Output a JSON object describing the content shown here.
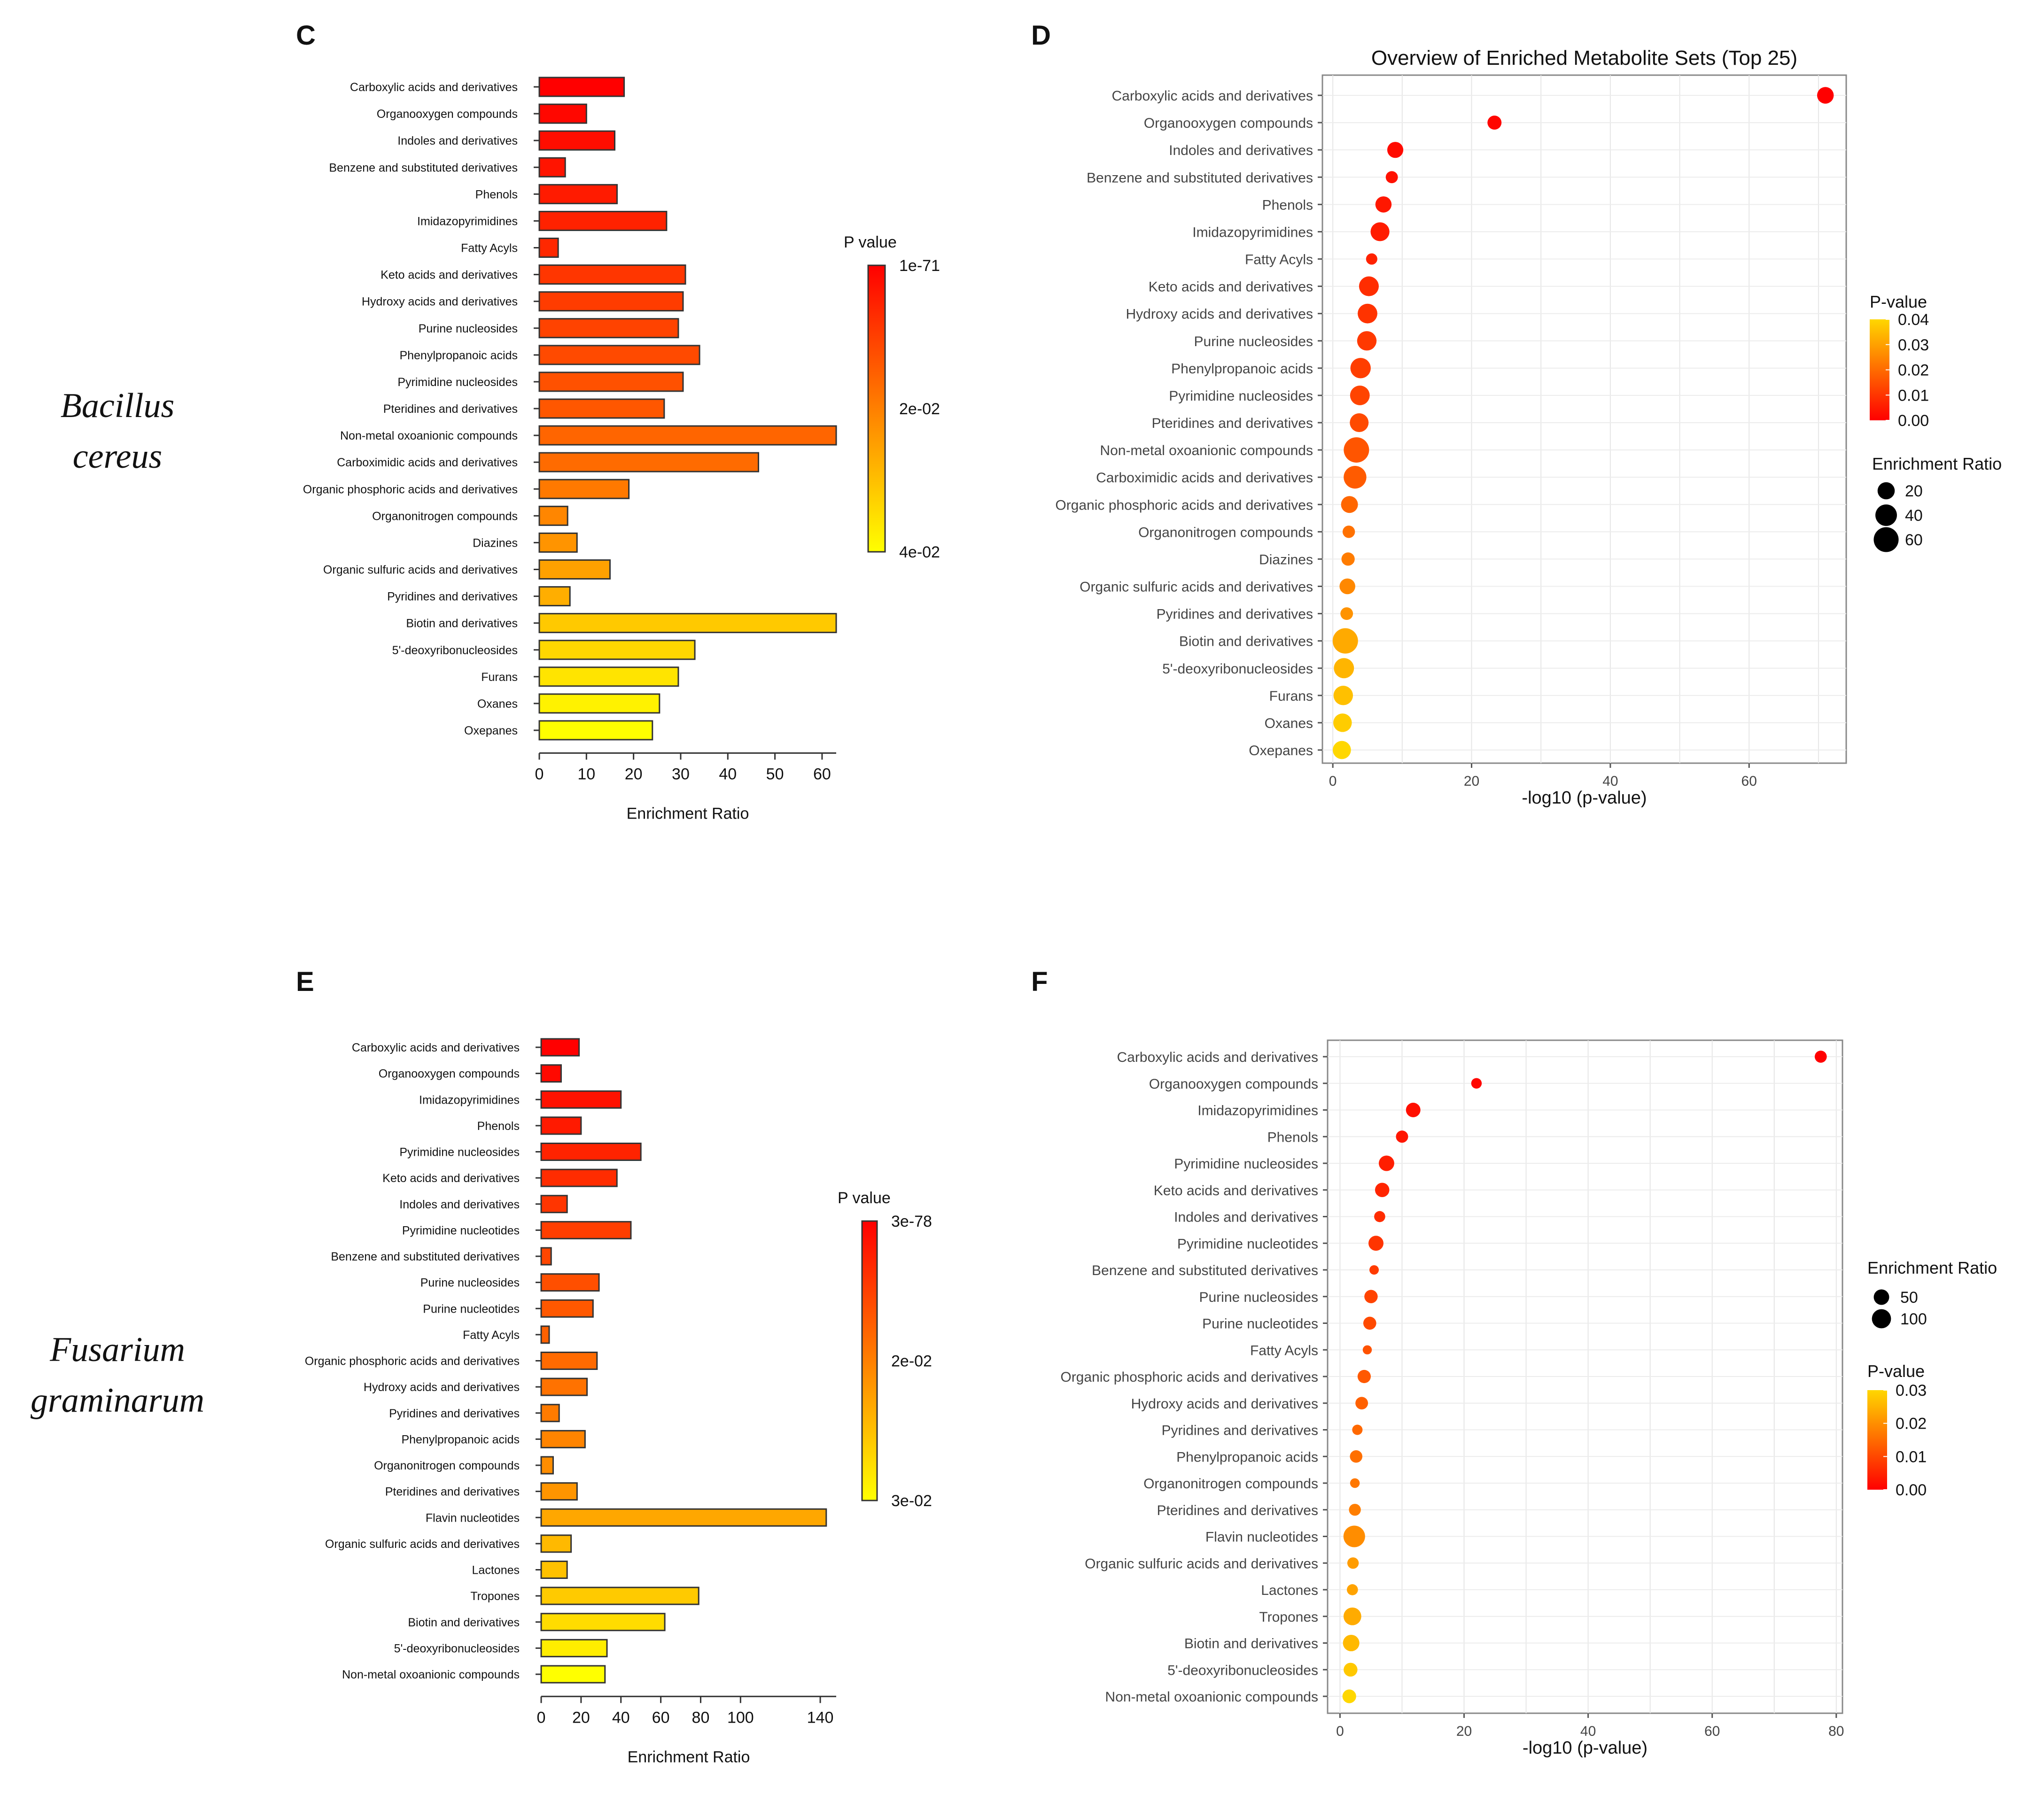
{
  "organisms": {
    "top": [
      "Bacillus",
      "cereus"
    ],
    "bottom": [
      "Fusarium",
      "graminarum"
    ]
  },
  "chart_data": [
    {
      "panel": "C",
      "type": "bar",
      "orientation": "horizontal",
      "title": "",
      "xlabel": "Enrichment Ratio",
      "ylabel": "",
      "xlim": [
        0,
        63
      ],
      "xticks": [
        0,
        10,
        20,
        30,
        40,
        50,
        60
      ],
      "categories": [
        "Carboxylic acids and derivatives",
        "Organooxygen compounds",
        "Indoles and derivatives",
        "Benzene and substituted derivatives",
        "Phenols",
        "Imidazopyrimidines",
        "Fatty Acyls",
        "Keto acids and derivatives",
        "Hydroxy acids and derivatives",
        "Purine nucleosides",
        "Phenylpropanoic acids",
        "Pyrimidine nucleosides",
        "Pteridines and derivatives",
        "Non-metal oxoanionic compounds",
        "Carboximidic acids and derivatives",
        "Organic phosphoric acids and derivatives",
        "Organonitrogen compounds",
        "Diazines",
        "Organic sulfuric acids and derivatives",
        "Pyridines and derivatives",
        "Biotin and derivatives",
        "5'-deoxyribonucleosides",
        "Furans",
        "Oxanes",
        "Oxepanes"
      ],
      "values": [
        18,
        10,
        16,
        5.5,
        16.5,
        27,
        4,
        31,
        30.5,
        29.5,
        34,
        30.5,
        26.5,
        63,
        46.5,
        19,
        6,
        8,
        15,
        6.5,
        63,
        33,
        29.5,
        25.5,
        24
      ],
      "color_by": "P value",
      "color_values": [
        0.0,
        0.001,
        0.002,
        0.003,
        0.004,
        0.005,
        0.006,
        0.008,
        0.009,
        0.01,
        0.011,
        0.012,
        0.013,
        0.015,
        0.016,
        0.018,
        0.02,
        0.022,
        0.024,
        0.026,
        0.03,
        0.032,
        0.034,
        0.036,
        0.038
      ],
      "colorbar": {
        "title": "P value",
        "labels": [
          "1e-71",
          "2e-02",
          "4e-02"
        ],
        "colors": [
          "#ff0000",
          "#ffff00"
        ]
      }
    },
    {
      "panel": "D",
      "type": "scatter",
      "title": "Overview of Enriched Metabolite Sets (Top 25)",
      "xlabel": "-log10 (p-value)",
      "ylabel": "",
      "xlim": [
        -1.5,
        74
      ],
      "xticks": [
        0,
        20,
        40,
        60
      ],
      "categories": [
        "Carboxylic acids and derivatives",
        "Organooxygen compounds",
        "Indoles and derivatives",
        "Benzene and substituted derivatives",
        "Phenols",
        "Imidazopyrimidines",
        "Fatty Acyls",
        "Keto acids and derivatives",
        "Hydroxy acids and derivatives",
        "Purine nucleosides",
        "Phenylpropanoic acids",
        "Pyrimidine nucleosides",
        "Pteridines and derivatives",
        "Non-metal oxoanionic compounds",
        "Carboximidic acids and derivatives",
        "Organic phosphoric acids and derivatives",
        "Organonitrogen compounds",
        "Diazines",
        "Organic sulfuric acids and derivatives",
        "Pyridines and derivatives",
        "Biotin and derivatives",
        "5'-deoxyribonucleosides",
        "Furans",
        "Oxanes",
        "Oxepanes"
      ],
      "x": [
        71,
        23.3,
        9,
        8.5,
        7.3,
        6.8,
        5.6,
        5.2,
        5.0,
        4.9,
        4.0,
        3.9,
        3.8,
        3.4,
        3.2,
        2.4,
        2.3,
        2.2,
        2.1,
        2.0,
        1.8,
        1.6,
        1.5,
        1.4,
        1.3
      ],
      "size": [
        18,
        10,
        16,
        5.5,
        16.5,
        27,
        4,
        31,
        30.5,
        29.5,
        34,
        30.5,
        26.5,
        63,
        46.5,
        19,
        6,
        8,
        15,
        6.5,
        63,
        33,
        29.5,
        25.5,
        24
      ],
      "p_value": [
        0.0,
        0.001,
        0.002,
        0.003,
        0.004,
        0.005,
        0.006,
        0.008,
        0.009,
        0.01,
        0.011,
        0.012,
        0.013,
        0.015,
        0.016,
        0.018,
        0.02,
        0.022,
        0.024,
        0.026,
        0.03,
        0.032,
        0.034,
        0.036,
        0.038
      ],
      "legend_color": {
        "title": "P-value",
        "labels": [
          "0.04",
          "0.03",
          "0.02",
          "0.01",
          "0.00"
        ],
        "colors": [
          "#ff0000",
          "#ffd700"
        ]
      },
      "legend_size": {
        "title": "Enrichment Ratio",
        "labels": [
          "20",
          "40",
          "60"
        ],
        "values": [
          20,
          40,
          60
        ]
      }
    },
    {
      "panel": "E",
      "type": "bar",
      "orientation": "horizontal",
      "title": "",
      "xlabel": "Enrichment Ratio",
      "ylabel": "",
      "xlim": [
        0,
        148
      ],
      "xticks": [
        0,
        20,
        40,
        60,
        80,
        100,
        140
      ],
      "categories": [
        "Carboxylic acids and derivatives",
        "Organooxygen compounds",
        "Imidazopyrimidines",
        "Phenols",
        "Pyrimidine nucleosides",
        "Keto acids and derivatives",
        "Indoles and derivatives",
        "Pyrimidine nucleotides",
        "Benzene and substituted derivatives",
        "Purine nucleosides",
        "Purine nucleotides",
        "Fatty Acyls",
        "Organic phosphoric acids and derivatives",
        "Hydroxy acids and derivatives",
        "Pyridines and derivatives",
        "Phenylpropanoic acids",
        "Organonitrogen compounds",
        "Pteridines and derivatives",
        "Flavin nucleotides",
        "Organic sulfuric acids and derivatives",
        "Lactones",
        "Tropones",
        "Biotin and derivatives",
        "5'-deoxyribonucleosides",
        "Non-metal oxoanionic compounds"
      ],
      "values": [
        19,
        10,
        40,
        20,
        50,
        38,
        13,
        45,
        5,
        29,
        26,
        4,
        28,
        23,
        9,
        22,
        6,
        18,
        143,
        15,
        13,
        79,
        62,
        33,
        32
      ],
      "color_by": "P value",
      "color_values": [
        0.0,
        0.001,
        0.002,
        0.003,
        0.004,
        0.005,
        0.006,
        0.007,
        0.008,
        0.009,
        0.01,
        0.011,
        0.012,
        0.013,
        0.014,
        0.015,
        0.016,
        0.017,
        0.019,
        0.021,
        0.022,
        0.023,
        0.025,
        0.027,
        0.029
      ],
      "colorbar": {
        "title": "P value",
        "labels": [
          "3e-78",
          "2e-02",
          "3e-02"
        ],
        "colors": [
          "#ff0000",
          "#ffff00"
        ]
      }
    },
    {
      "panel": "F",
      "type": "scatter",
      "title": "",
      "xlabel": "-log10 (p-value)",
      "ylabel": "",
      "xlim": [
        -2,
        81
      ],
      "xticks": [
        0,
        20,
        40,
        60,
        80
      ],
      "categories": [
        "Carboxylic acids and derivatives",
        "Organooxygen compounds",
        "Imidazopyrimidines",
        "Phenols",
        "Pyrimidine nucleosides",
        "Keto acids and derivatives",
        "Indoles and derivatives",
        "Pyrimidine nucleotides",
        "Benzene and substituted derivatives",
        "Purine nucleosides",
        "Purine nucleotides",
        "Fatty Acyls",
        "Organic phosphoric acids and derivatives",
        "Hydroxy acids and derivatives",
        "Pyridines and derivatives",
        "Phenylpropanoic acids",
        "Organonitrogen compounds",
        "Pteridines and derivatives",
        "Flavin nucleotides",
        "Organic sulfuric acids and derivatives",
        "Lactones",
        "Tropones",
        "Biotin and derivatives",
        "5'-deoxyribonucleosides",
        "Non-metal oxoanionic compounds"
      ],
      "x": [
        77.5,
        22,
        11.8,
        10,
        7.5,
        6.8,
        6.4,
        5.8,
        5.5,
        5.0,
        4.8,
        4.4,
        3.9,
        3.5,
        2.8,
        2.6,
        2.4,
        2.4,
        2.3,
        2.1,
        2.0,
        2.0,
        1.8,
        1.7,
        1.5
      ],
      "size": [
        19,
        10,
        40,
        20,
        50,
        38,
        13,
        45,
        5,
        29,
        26,
        4,
        28,
        23,
        9,
        22,
        6,
        18,
        143,
        15,
        13,
        79,
        62,
        33,
        32
      ],
      "p_value": [
        0.0,
        0.001,
        0.002,
        0.003,
        0.004,
        0.005,
        0.006,
        0.007,
        0.008,
        0.009,
        0.01,
        0.011,
        0.012,
        0.013,
        0.014,
        0.015,
        0.016,
        0.017,
        0.019,
        0.021,
        0.022,
        0.023,
        0.025,
        0.027,
        0.029
      ],
      "legend_color": {
        "title": "P-value",
        "labels": [
          "0.03",
          "0.02",
          "0.01",
          "0.00"
        ],
        "colors": [
          "#ff0000",
          "#ffd700"
        ]
      },
      "legend_size": {
        "title": "Enrichment Ratio",
        "labels": [
          "50",
          "100"
        ],
        "values": [
          50,
          100
        ]
      }
    }
  ]
}
